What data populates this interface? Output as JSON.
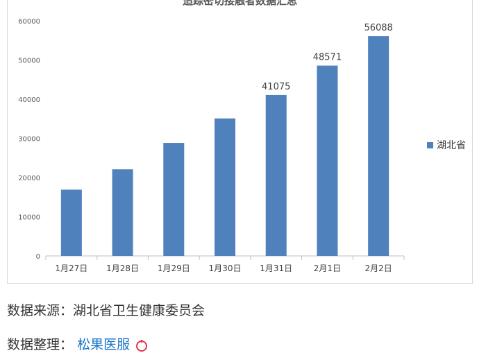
{
  "chart_data": {
    "type": "bar",
    "title": "追踪密切接触者数据汇总",
    "categories": [
      "1月27日",
      "1月28日",
      "1月29日",
      "1月30日",
      "1月31日",
      "2月1日",
      "2月2日"
    ],
    "series": [
      {
        "name": "湖北省",
        "values": [
          16904,
          22095,
          28839,
          35087,
          41075,
          48571,
          56088
        ],
        "data_labels": [
          null,
          null,
          null,
          null,
          "41075",
          "48571",
          "56088"
        ]
      }
    ],
    "ylim": [
      0,
      60000
    ],
    "yticks": [
      0,
      10000,
      20000,
      30000,
      40000,
      50000,
      60000
    ],
    "xlabel": "",
    "ylabel": "",
    "grid": false,
    "legend_position": "right",
    "bar_color": "#4f81bd"
  },
  "footer": {
    "source": "数据来源：湖北省卫生健康委员会",
    "organizer_prefix": "数据整理：",
    "organizer_name": "松果医服"
  },
  "colors": {
    "bar": "#4f81bd",
    "axis": "#bfbfbf",
    "tick_text": "#595959",
    "logo": "#e8334a"
  }
}
